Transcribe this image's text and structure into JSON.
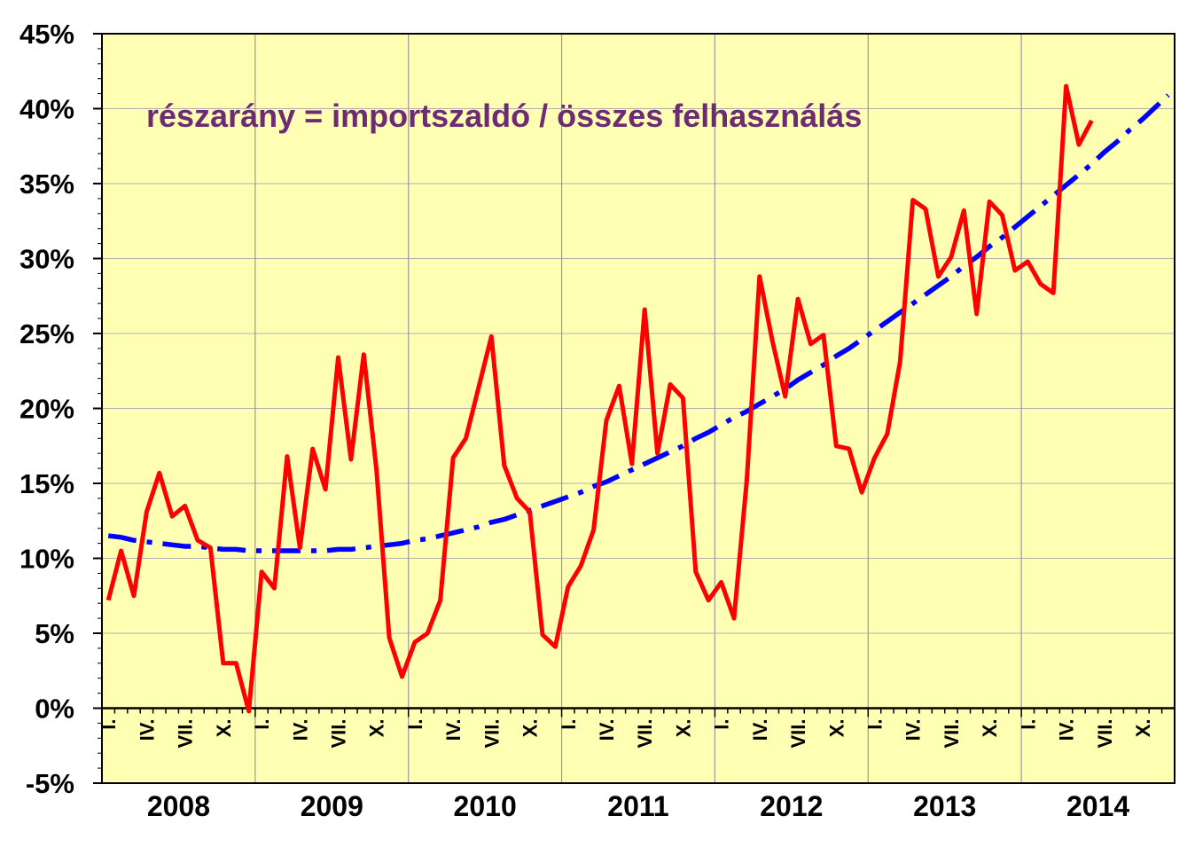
{
  "chart_data": {
    "type": "line",
    "annotation": "részarány = importszaldó / összes felhasználás",
    "categories": [
      "I.",
      null,
      null,
      "IV.",
      null,
      null,
      "VII.",
      null,
      null,
      "X.",
      null,
      null,
      "I.",
      null,
      null,
      "IV.",
      null,
      null,
      "VII.",
      null,
      null,
      "X.",
      null,
      null,
      "I.",
      null,
      null,
      "IV.",
      null,
      null,
      "VII.",
      null,
      null,
      "X.",
      null,
      null,
      "I.",
      null,
      null,
      "IV.",
      null,
      null,
      "VII.",
      null,
      null,
      "X.",
      null,
      null,
      "I.",
      null,
      null,
      "IV.",
      null,
      null,
      "VII.",
      null,
      null,
      "X.",
      null,
      null,
      "I.",
      null,
      null,
      "IV.",
      null,
      null,
      "VII.",
      null,
      null,
      "X.",
      null,
      null,
      "I.",
      null,
      null,
      "IV.",
      null,
      null,
      "VII.",
      null,
      null,
      "X.",
      null,
      null
    ],
    "years": [
      "2008",
      "2009",
      "2010",
      "2011",
      "2012",
      "2013",
      "2014"
    ],
    "series": [
      {
        "color": "#ff0000",
        "line_style": "solid",
        "values": [
          7.2,
          10.5,
          7.5,
          13.1,
          15.7,
          12.8,
          13.5,
          11.2,
          10.7,
          3.0,
          3.0,
          -0.2,
          9.1,
          8.0,
          16.8,
          10.7,
          17.3,
          14.6,
          23.4,
          16.6,
          23.6,
          15.9,
          4.7,
          2.1,
          4.4,
          5.0,
          7.2,
          16.7,
          18.0,
          21.4,
          24.8,
          16.2,
          14.0,
          13.1,
          4.9,
          4.1,
          8.1,
          9.5,
          11.9,
          19.2,
          21.5,
          16.3,
          26.6,
          17.0,
          21.6,
          20.7,
          9.1,
          7.2,
          8.4,
          6.0,
          15.2,
          28.8,
          24.5,
          20.8,
          27.3,
          24.3,
          24.9,
          17.5,
          17.3,
          14.4,
          16.7,
          18.3,
          23.1,
          33.9,
          33.3,
          28.8,
          30.1,
          33.2,
          26.3,
          33.8,
          32.9,
          29.2,
          29.8,
          28.3,
          27.7,
          41.5,
          37.6,
          39.2,
          null,
          null,
          null,
          null,
          null,
          null
        ]
      },
      {
        "color": "#0000ff",
        "line_style": "dashdot",
        "values": [
          11.5,
          11.4,
          11.2,
          11.1,
          11.0,
          10.9,
          10.8,
          10.8,
          10.7,
          10.6,
          10.6,
          10.5,
          10.5,
          10.5,
          10.5,
          10.5,
          10.5,
          10.5,
          10.6,
          10.6,
          10.7,
          10.8,
          10.9,
          11.0,
          11.2,
          11.3,
          11.5,
          11.7,
          11.9,
          12.1,
          12.4,
          12.6,
          12.9,
          13.2,
          13.5,
          13.8,
          14.1,
          14.4,
          14.8,
          15.1,
          15.5,
          15.9,
          16.3,
          16.7,
          17.1,
          17.5,
          18.0,
          18.4,
          18.9,
          19.4,
          19.8,
          20.3,
          20.8,
          21.3,
          21.9,
          22.4,
          22.9,
          23.5,
          24.0,
          24.6,
          25.2,
          25.8,
          26.4,
          27.0,
          27.6,
          28.2,
          28.8,
          29.5,
          30.1,
          30.8,
          31.4,
          32.1,
          32.8,
          33.5,
          34.2,
          34.9,
          35.6,
          36.3,
          37.1,
          37.8,
          38.6,
          39.3,
          40.1,
          40.9
        ]
      }
    ],
    "ylim": [
      -5,
      45
    ],
    "yticks": [
      {
        "value": -5,
        "label": "-5%"
      },
      {
        "value": 0,
        "label": "0%"
      },
      {
        "value": 5,
        "label": "5%"
      },
      {
        "value": 10,
        "label": "10%"
      },
      {
        "value": 15,
        "label": "15%"
      },
      {
        "value": 20,
        "label": "20%"
      },
      {
        "value": 25,
        "label": "25%"
      },
      {
        "value": 30,
        "label": "30%"
      },
      {
        "value": 35,
        "label": "35%"
      },
      {
        "value": 40,
        "label": "40%"
      },
      {
        "value": 45,
        "label": "45%"
      }
    ],
    "grid": true,
    "plot_background": "#ffffb4"
  }
}
